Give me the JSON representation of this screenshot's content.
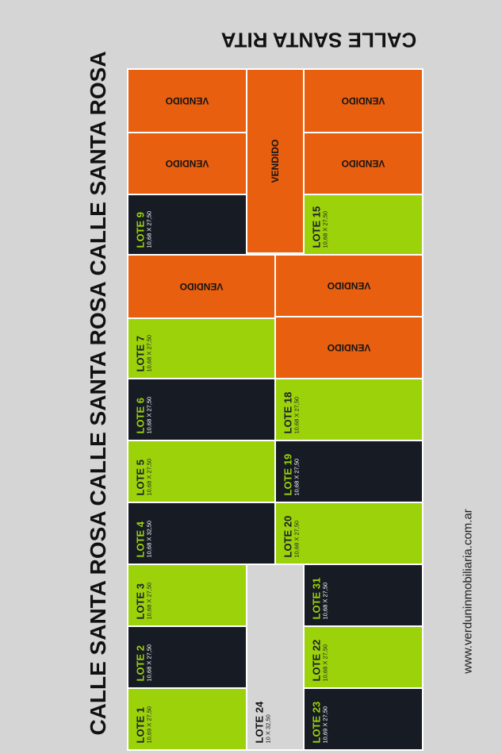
{
  "streets": {
    "top": "CALLE SANTA RITA",
    "left_1": "CALLE SANTA ROSA",
    "left_2": "CALLE SANTA ROSA",
    "left_3": "CALLE SANTA ROSA"
  },
  "website": "www.verduninmobiliaria.com.ar",
  "sold_label": "VENDIDO",
  "colors": {
    "available": "#9cd20a",
    "dark_lot": "#171b24",
    "sold": "#e85f0f",
    "background": "#d5d5d5"
  },
  "lots": {
    "lote1": {
      "name": "LOTE 1",
      "dims": "10,69 X 27,50"
    },
    "lote2": {
      "name": "LOTE 2",
      "dims": "10,68 X 27,50"
    },
    "lote3": {
      "name": "LOTE 3",
      "dims": "10,68 X 27,50"
    },
    "lote4": {
      "name": "LOTE 4",
      "dims": "10,68 X 32,50"
    },
    "lote5": {
      "name": "LOTE 5",
      "dims": "10,68 X 27,50"
    },
    "lote6": {
      "name": "LOTE 6",
      "dims": "10,68 X 27,50"
    },
    "lote7": {
      "name": "LOTE 7",
      "dims": "10,68 X 27,50"
    },
    "lote9": {
      "name": "LOTE 9",
      "dims": "10,68 X 27,50"
    },
    "lote15": {
      "name": "LOTE 15",
      "dims": "10,68 X 27,50"
    },
    "lote18": {
      "name": "LOTE 18",
      "dims": "10,68 X 27,50"
    },
    "lote19": {
      "name": "LOTE 19",
      "dims": "10,68 X 27,50"
    },
    "lote20": {
      "name": "LOTE 20",
      "dims": "10,68 X 27,50"
    },
    "lote31": {
      "name": "LOTE 31",
      "dims": "10,68 X 27,50"
    },
    "lote22": {
      "name": "LOTE 22",
      "dims": "10,68 X 27,50"
    },
    "lote23": {
      "name": "LOTE 23",
      "dims": "10,69 X 27,50"
    },
    "lote24": {
      "name": "LOTE 24",
      "dims": "10 X 32,50"
    }
  }
}
